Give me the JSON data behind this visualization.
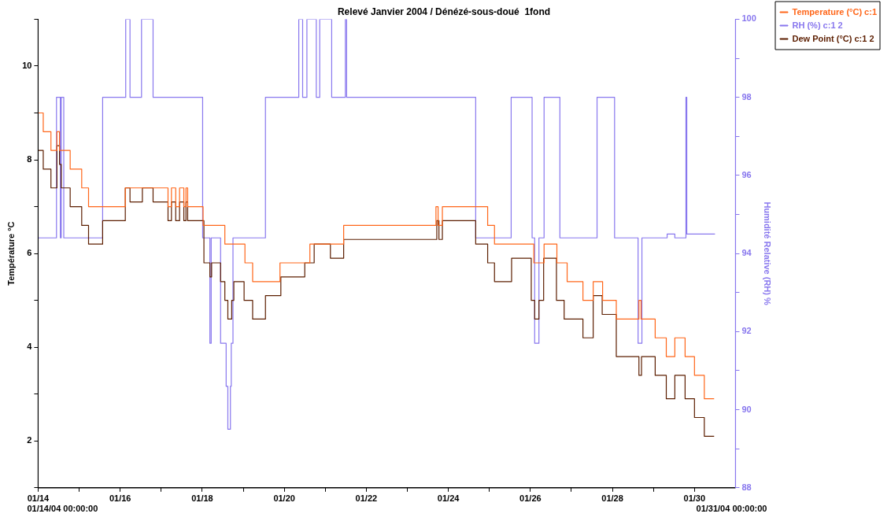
{
  "chart_data": {
    "type": "step",
    "title": "Relevé Janvier 2004 / Dénézé-sous-doué  1fond",
    "ylabel": "Température °C",
    "y2label": "Humidité Relative (RH) %",
    "xlim": [
      "2004-01-14",
      "2004-01-31"
    ],
    "xticks": [
      {
        "value": "2004-01-14",
        "label": "01/14"
      },
      {
        "value": "2004-01-15",
        "label": null
      },
      {
        "value": "2004-01-16",
        "label": "01/16"
      },
      {
        "value": "2004-01-17",
        "label": null
      },
      {
        "value": "2004-01-18",
        "label": "01/18"
      },
      {
        "value": "2004-01-19",
        "label": null
      },
      {
        "value": "2004-01-20",
        "label": "01/20"
      },
      {
        "value": "2004-01-21",
        "label": null
      },
      {
        "value": "2004-01-22",
        "label": "01/22"
      },
      {
        "value": "2004-01-23",
        "label": null
      },
      {
        "value": "2004-01-24",
        "label": "01/24"
      },
      {
        "value": "2004-01-25",
        "label": null
      },
      {
        "value": "2004-01-26",
        "label": "01/26"
      },
      {
        "value": "2004-01-27",
        "label": null
      },
      {
        "value": "2004-01-28",
        "label": "01/28"
      },
      {
        "value": "2004-01-29",
        "label": null
      },
      {
        "value": "2004-01-30",
        "label": "01/30"
      }
    ],
    "ylim": [
      1,
      11
    ],
    "yticks": [
      {
        "value": 1,
        "label": null
      },
      2,
      {
        "value": 3,
        "label": null
      },
      4,
      {
        "value": 5,
        "label": null
      },
      6,
      {
        "value": 7,
        "label": null
      },
      8,
      {
        "value": 9,
        "label": null
      },
      10,
      {
        "value": 11,
        "label": null
      }
    ],
    "y2lim": [
      88,
      100
    ],
    "y2ticks": [
      88,
      {
        "value": 89,
        "label": null
      },
      90,
      {
        "value": 91,
        "label": null
      },
      92,
      {
        "value": 93,
        "label": null
      },
      94,
      {
        "value": 95,
        "label": null
      },
      96,
      {
        "value": 97,
        "label": null
      },
      98,
      {
        "value": 99,
        "label": null
      },
      100
    ],
    "grid": false,
    "legend": "top right",
    "marker": "none",
    "line_style": "solid",
    "annotations": [
      "01/14/04 00:00:00",
      "01/31/04 00:00:00"
    ],
    "series": [
      {
        "name": "Temperature (°C) c:1",
        "color": "#ff6619",
        "x": [
          "2004-01-14T00:00",
          "2004-01-14T03:00",
          "2004-01-14T07:30",
          "2004-01-14T11:00",
          "2004-01-14T12:30",
          "2004-01-14T18:45",
          "2004-01-15T01:30",
          "2004-01-15T05:30",
          "2004-01-16T03:00",
          "2004-01-17T04:00",
          "2004-01-17T06:00",
          "2004-01-17T08:30",
          "2004-01-17T10:45",
          "2004-01-17T13:15",
          "2004-01-17T14:30",
          "2004-01-17T15:30",
          "2004-01-18T00:30",
          "2004-01-18T13:15",
          "2004-01-19T01:00",
          "2004-01-19T05:30",
          "2004-01-19T21:30",
          "2004-01-20T15:00",
          "2004-01-21T10:45",
          "2004-01-23T16:45",
          "2004-01-23T18:00",
          "2004-01-23T20:30",
          "2004-01-24T23:00",
          "2004-01-25T03:00",
          "2004-01-26T02:00",
          "2004-01-26T08:00",
          "2004-01-26T15:30",
          "2004-01-26T21:30",
          "2004-01-27T06:45",
          "2004-01-27T12:45",
          "2004-01-27T18:15",
          "2004-01-28T02:15",
          "2004-01-28T15:30",
          "2004-01-28T16:45",
          "2004-01-29T01:00",
          "2004-01-29T07:30",
          "2004-01-29T12:30",
          "2004-01-29T18:30",
          "2004-01-30T00:00",
          "2004-01-30T05:45",
          "2004-01-30T11:30"
        ],
        "values": [
          9.0,
          8.6,
          8.2,
          8.6,
          8.2,
          7.8,
          7.4,
          7.0,
          7.4,
          7.0,
          7.4,
          7.0,
          7.4,
          7.0,
          7.4,
          7.0,
          6.6,
          6.2,
          5.8,
          5.4,
          5.8,
          6.2,
          6.6,
          7.0,
          6.6,
          7.0,
          6.6,
          6.2,
          5.8,
          6.2,
          5.8,
          5.4,
          5.0,
          5.4,
          5.0,
          4.6,
          5.0,
          4.6,
          4.2,
          3.8,
          4.2,
          3.8,
          3.4,
          2.9,
          2.9
        ]
      },
      {
        "name": "RH (%) c:1 2",
        "color": "#8877ee",
        "axis": "y2",
        "x": [
          "2004-01-14T00:00",
          "2004-01-14T10:45",
          "2004-01-14T13:00",
          "2004-01-14T13:30",
          "2004-01-14T15:00",
          "2004-01-15T13:45",
          "2004-01-16T03:15",
          "2004-01-16T05:45",
          "2004-01-16T12:30",
          "2004-01-16T19:15",
          "2004-01-18T00:15",
          "2004-01-18T04:30",
          "2004-01-18T05:15",
          "2004-01-18T10:45",
          "2004-01-18T14:00",
          "2004-01-18T15:00",
          "2004-01-18T16:30",
          "2004-01-18T17:00",
          "2004-01-18T18:00",
          "2004-01-19T13:00",
          "2004-01-20T08:30",
          "2004-01-20T10:45",
          "2004-01-20T13:15",
          "2004-01-20T18:45",
          "2004-01-20T20:45",
          "2004-01-21T03:45",
          "2004-01-21T11:45",
          "2004-01-21T12:30",
          "2004-01-24T16:00",
          "2004-01-25T12:45",
          "2004-01-26T01:00",
          "2004-01-26T02:30",
          "2004-01-26T05:00",
          "2004-01-26T08:00",
          "2004-01-26T17:15",
          "2004-01-27T15:00",
          "2004-01-28T01:15",
          "2004-01-28T15:00",
          "2004-01-28T17:15",
          "2004-01-29T08:00",
          "2004-01-29T12:30",
          "2004-01-29T19:00",
          "2004-01-29T19:30",
          "2004-01-30T12:00"
        ],
        "values": [
          94.4,
          98,
          94.4,
          98,
          94.4,
          98,
          100,
          98,
          100,
          98,
          94.4,
          91.7,
          94.4,
          91.7,
          90.6,
          89.5,
          90.6,
          91.7,
          94.4,
          98,
          100,
          98,
          100,
          98,
          100,
          98,
          100,
          98,
          94.4,
          98,
          94.4,
          91.7,
          94.4,
          98,
          94.4,
          98,
          94.4,
          91.7,
          94.4,
          94.5,
          94.4,
          98,
          94.5,
          94.5
        ]
      },
      {
        "name": "Dew Point (°C) c:1 2",
        "color": "#5c1e00",
        "x": [
          "2004-01-14T00:00",
          "2004-01-14T03:00",
          "2004-01-14T07:30",
          "2004-01-14T11:00",
          "2004-01-14T12:30",
          "2004-01-14T13:30",
          "2004-01-14T18:45",
          "2004-01-15T01:30",
          "2004-01-15T05:30",
          "2004-01-15T13:45",
          "2004-01-16T03:00",
          "2004-01-16T05:45",
          "2004-01-16T13:00",
          "2004-01-16T19:15",
          "2004-01-17T04:00",
          "2004-01-17T06:00",
          "2004-01-17T08:30",
          "2004-01-17T10:45",
          "2004-01-17T13:15",
          "2004-01-17T14:30",
          "2004-01-17T15:30",
          "2004-01-18T01:00",
          "2004-01-18T04:30",
          "2004-01-18T05:30",
          "2004-01-18T10:45",
          "2004-01-18T13:15",
          "2004-01-18T15:00",
          "2004-01-18T17:15",
          "2004-01-18T18:30",
          "2004-01-19T00:30",
          "2004-01-19T05:30",
          "2004-01-19T13:00",
          "2004-01-19T22:00",
          "2004-01-20T12:00",
          "2004-01-20T17:30",
          "2004-01-21T03:00",
          "2004-01-21T10:45",
          "2004-01-23T17:15",
          "2004-01-23T18:30",
          "2004-01-23T20:30",
          "2004-01-24T16:00",
          "2004-01-24T23:00",
          "2004-01-25T03:00",
          "2004-01-25T13:00",
          "2004-01-26T00:30",
          "2004-01-26T02:30",
          "2004-01-26T05:00",
          "2004-01-26T07:45",
          "2004-01-26T15:15",
          "2004-01-26T19:45",
          "2004-01-27T06:45",
          "2004-01-27T12:45",
          "2004-01-27T18:00",
          "2004-01-28T02:15",
          "2004-01-28T15:30",
          "2004-01-28T17:00",
          "2004-01-29T01:00",
          "2004-01-29T07:30",
          "2004-01-29T12:30",
          "2004-01-29T18:30",
          "2004-01-30T00:00",
          "2004-01-30T05:45",
          "2004-01-30T11:30"
        ],
        "values": [
          8.2,
          7.8,
          7.4,
          8.3,
          7.9,
          7.4,
          7.0,
          6.6,
          6.2,
          6.7,
          7.4,
          7.1,
          7.4,
          7.1,
          6.7,
          7.1,
          6.7,
          7.1,
          6.7,
          7.1,
          6.7,
          5.8,
          5.5,
          5.8,
          5.4,
          5.0,
          4.6,
          5.0,
          5.4,
          5.0,
          4.6,
          5.1,
          5.5,
          5.8,
          6.2,
          5.9,
          6.3,
          6.7,
          6.3,
          6.7,
          6.2,
          5.8,
          5.4,
          5.9,
          5.0,
          4.6,
          5.0,
          5.9,
          5.0,
          4.6,
          4.2,
          5.1,
          4.7,
          3.8,
          3.4,
          3.8,
          3.4,
          2.9,
          3.4,
          2.9,
          2.5,
          2.1,
          2.1
        ]
      }
    ]
  }
}
